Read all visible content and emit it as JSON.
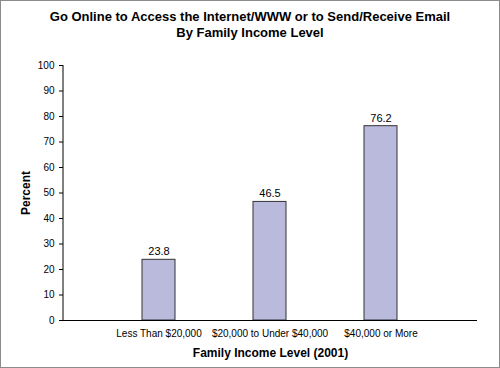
{
  "chart_data": {
    "type": "bar",
    "title": "Go Online to Access the Internet/WWW or to Send/Receive Email",
    "subtitle": "By Family Income Level",
    "x_label": "Family Income Level (2001)",
    "y_label": "Percent",
    "categories": [
      "Less Than $20,000",
      "$20,000 to Under $40,000",
      "$40,000 or More"
    ],
    "values": [
      23.8,
      46.5,
      76.2
    ],
    "color": "#babadd",
    "ylim": [
      0,
      100
    ],
    "yticks": [
      0,
      10,
      20,
      30,
      40,
      50,
      60,
      70,
      80,
      90,
      100
    ],
    "grid": false,
    "data_labels": true
  }
}
